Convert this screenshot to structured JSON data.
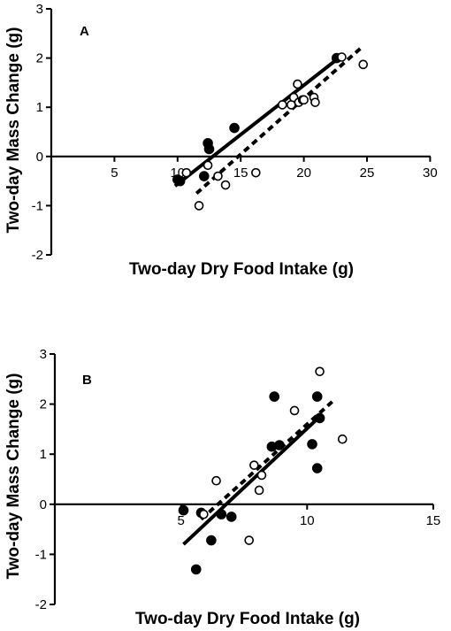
{
  "chart_data": [
    {
      "type": "scatter",
      "panel_label": "A",
      "xlabel": "Two-day Dry Food Intake (g)",
      "ylabel": "Two-day Mass Change (g)",
      "xlim": [
        0,
        30
      ],
      "ylim": [
        -2,
        3
      ],
      "xticks": [
        5,
        10,
        15,
        20,
        25,
        30
      ],
      "yticks": [
        -2,
        -1,
        0,
        1,
        2,
        3
      ],
      "series": [
        {
          "style": "filled",
          "points": [
            [
              10.0,
              -0.47
            ],
            [
              10.2,
              -0.5
            ],
            [
              12.1,
              -0.4
            ],
            [
              12.4,
              0.27
            ],
            [
              12.5,
              0.15
            ],
            [
              14.5,
              0.58
            ],
            [
              22.6,
              2.0
            ]
          ],
          "fit": {
            "style": "solid",
            "x": [
              9.8,
              23.0
            ],
            "y": [
              -0.6,
              2.05
            ]
          }
        },
        {
          "style": "open",
          "points": [
            [
              10.7,
              -0.33
            ],
            [
              11.7,
              -1.0
            ],
            [
              12.4,
              -0.18
            ],
            [
              13.2,
              -0.4
            ],
            [
              13.8,
              -0.58
            ],
            [
              16.2,
              -0.33
            ],
            [
              18.3,
              1.05
            ],
            [
              19.0,
              1.05
            ],
            [
              19.2,
              1.2
            ],
            [
              19.5,
              1.47
            ],
            [
              19.6,
              1.1
            ],
            [
              19.9,
              1.15
            ],
            [
              20.0,
              1.15
            ],
            [
              20.8,
              1.2
            ],
            [
              20.9,
              1.1
            ],
            [
              23.0,
              2.02
            ],
            [
              24.7,
              1.87
            ]
          ],
          "fit": {
            "style": "dashed",
            "x": [
              11.5,
              24.5
            ],
            "y": [
              -0.75,
              2.2
            ]
          }
        }
      ]
    },
    {
      "type": "scatter",
      "panel_label": "B",
      "xlabel": "Two-day Dry Food Intake (g)",
      "ylabel": "Two-day Mass Change (g)",
      "xlim": [
        0,
        15
      ],
      "ylim": [
        -2,
        3
      ],
      "xticks": [
        5,
        10,
        15
      ],
      "yticks": [
        -2,
        -1,
        0,
        1,
        2,
        3
      ],
      "series": [
        {
          "style": "filled",
          "points": [
            [
              5.1,
              -0.12
            ],
            [
              5.6,
              -1.3
            ],
            [
              5.8,
              -0.17
            ],
            [
              6.2,
              -0.72
            ],
            [
              6.6,
              -0.2
            ],
            [
              7.0,
              -0.25
            ],
            [
              8.6,
              1.15
            ],
            [
              8.7,
              2.15
            ],
            [
              8.9,
              1.18
            ],
            [
              10.2,
              1.2
            ],
            [
              10.4,
              0.72
            ],
            [
              10.4,
              2.15
            ],
            [
              10.5,
              1.72
            ]
          ],
          "fit": {
            "style": "solid",
            "x": [
              5.1,
              10.5
            ],
            "y": [
              -0.8,
              1.75
            ]
          }
        },
        {
          "style": "open",
          "points": [
            [
              5.9,
              -0.2
            ],
            [
              6.4,
              0.47
            ],
            [
              7.7,
              -0.72
            ],
            [
              7.9,
              0.78
            ],
            [
              8.1,
              0.28
            ],
            [
              8.2,
              0.58
            ],
            [
              9.5,
              1.87
            ],
            [
              10.5,
              2.65
            ],
            [
              11.4,
              1.3
            ]
          ],
          "fit": {
            "style": "dashed",
            "x": [
              5.8,
              11.0
            ],
            "y": [
              -0.3,
              2.05
            ]
          }
        }
      ]
    }
  ]
}
